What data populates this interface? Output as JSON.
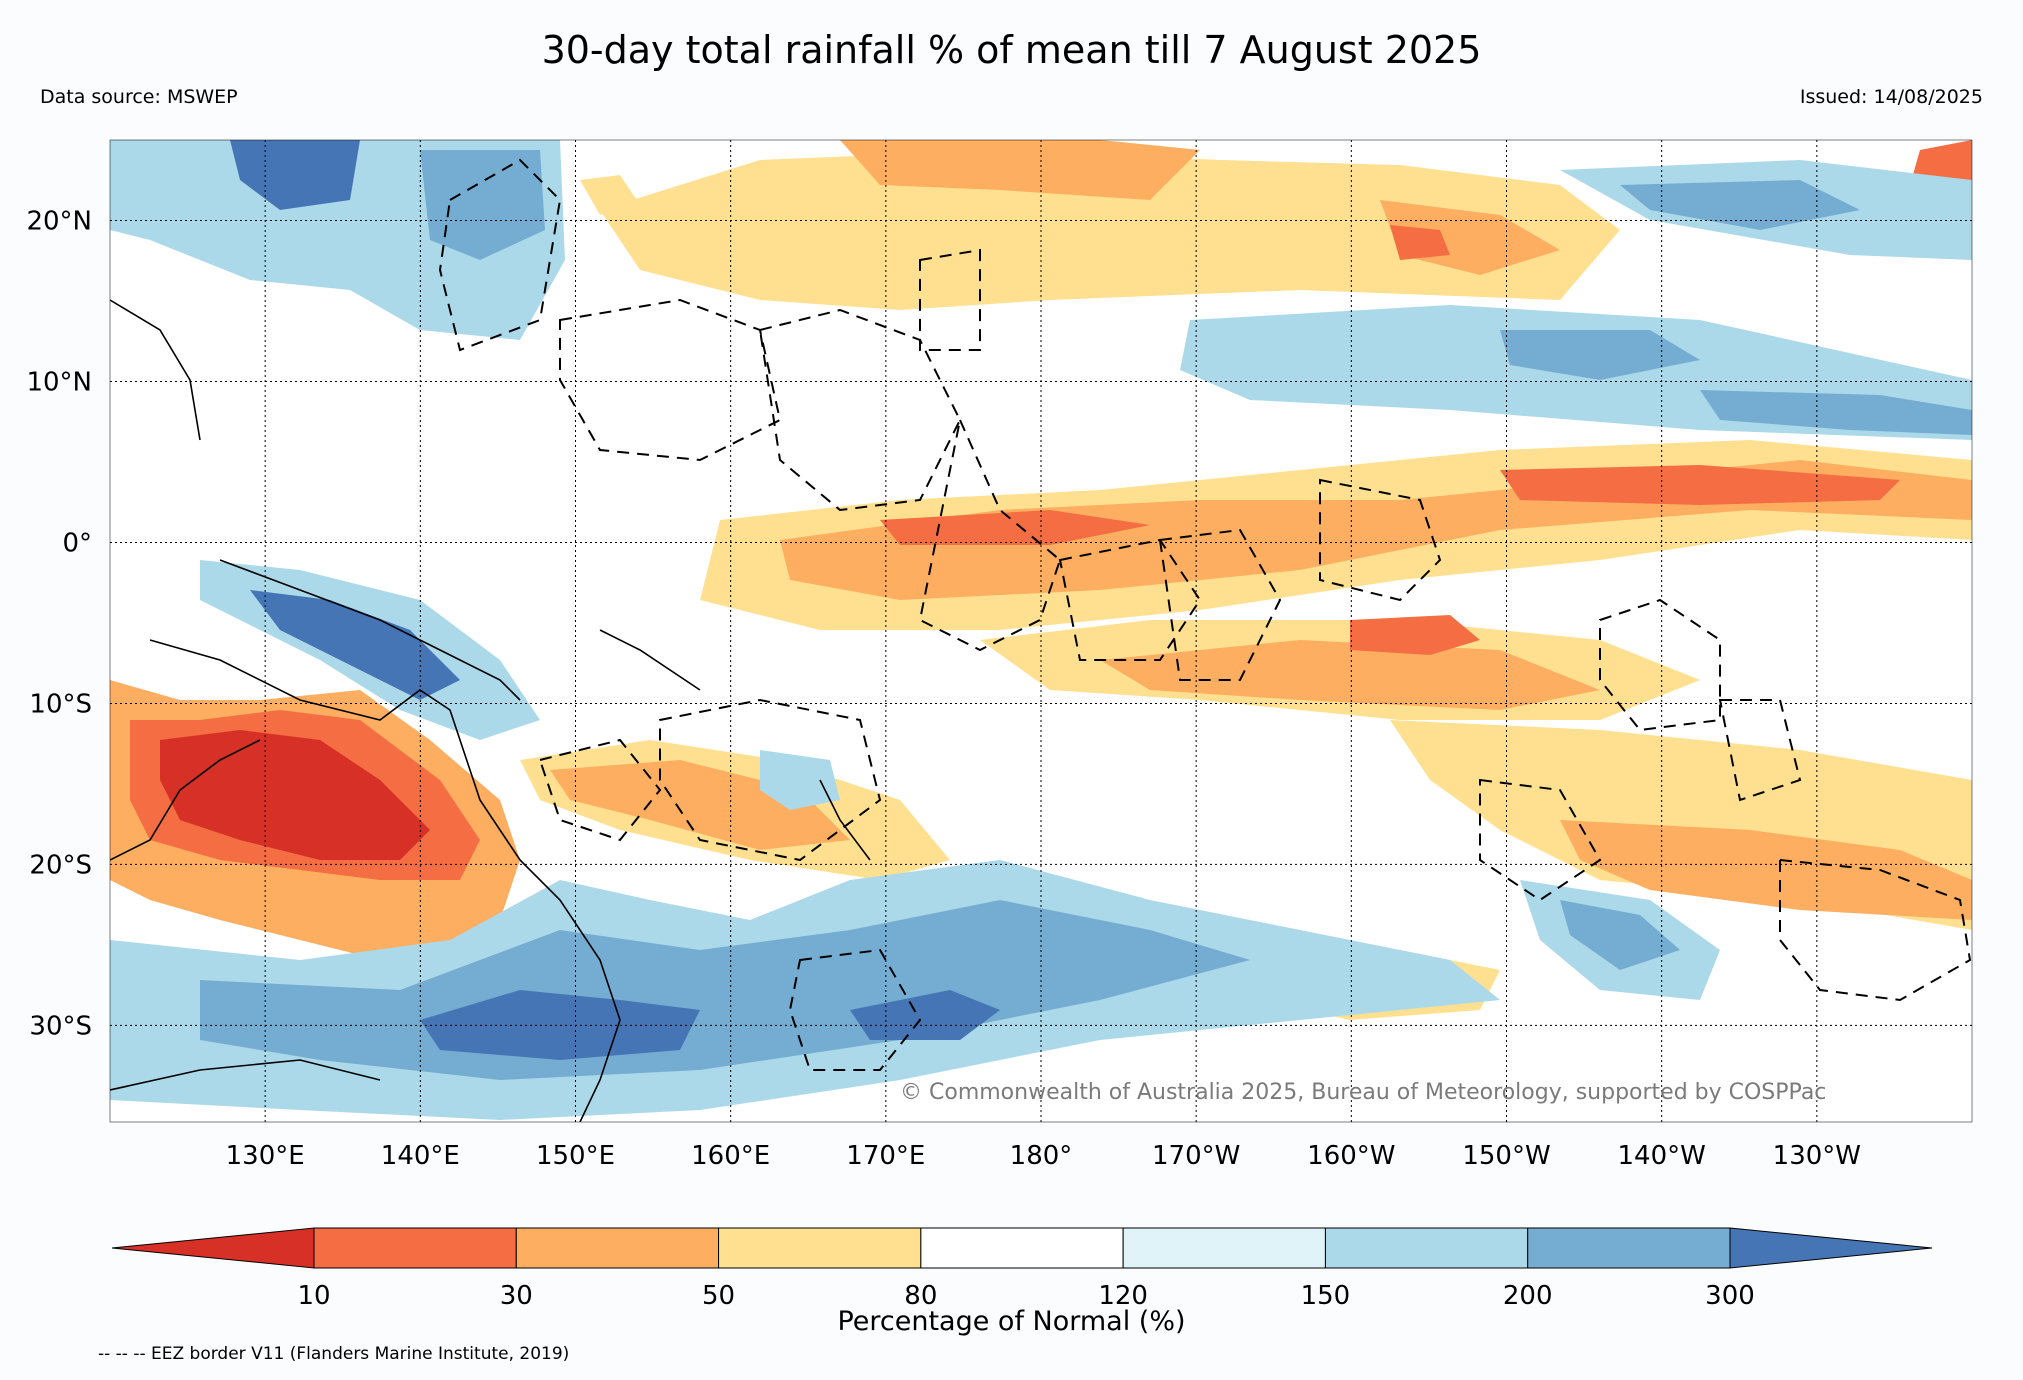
{
  "title": "30-day total rainfall % of mean till 7 August 2025",
  "data_source": "Data source: MSWEP",
  "issued": "Issued: 14/08/2025",
  "credit": "© Commonwealth of Australia 2025, Bureau of Meteorology, supported by COSPPac",
  "footnote": "-- -- -- EEZ border V11 (Flanders Marine Institute, 2019)",
  "map": {
    "lon_range": [
      120,
      240
    ],
    "lat_range": [
      -36,
      25
    ],
    "lat_ticks": [
      {
        "lat": 20,
        "label": "20°N"
      },
      {
        "lat": 10,
        "label": "10°N"
      },
      {
        "lat": 0,
        "label": "0°"
      },
      {
        "lat": -10,
        "label": "10°S"
      },
      {
        "lat": -20,
        "label": "20°S"
      },
      {
        "lat": -30,
        "label": "30°S"
      }
    ],
    "lon_ticks": [
      {
        "lon": 130,
        "label": "130°E"
      },
      {
        "lon": 140,
        "label": "140°E"
      },
      {
        "lon": 150,
        "label": "150°E"
      },
      {
        "lon": 160,
        "label": "160°E"
      },
      {
        "lon": 170,
        "label": "170°E"
      },
      {
        "lon": 180,
        "label": "180°"
      },
      {
        "lon": 190,
        "label": "170°W"
      },
      {
        "lon": 200,
        "label": "160°W"
      },
      {
        "lon": 210,
        "label": "150°W"
      },
      {
        "lon": 220,
        "label": "140°W"
      },
      {
        "lon": 230,
        "label": "130°W"
      }
    ]
  },
  "colorbar": {
    "label": "Percentage of Normal (%)",
    "ticks": [
      "10",
      "30",
      "50",
      "80",
      "120",
      "150",
      "200",
      "300"
    ],
    "colors": [
      "#d73027",
      "#f46d43",
      "#fdae61",
      "#fee090",
      "#ffffff",
      "#e0f3f8",
      "#abd9e9",
      "#74add1",
      "#4575b4"
    ]
  }
}
